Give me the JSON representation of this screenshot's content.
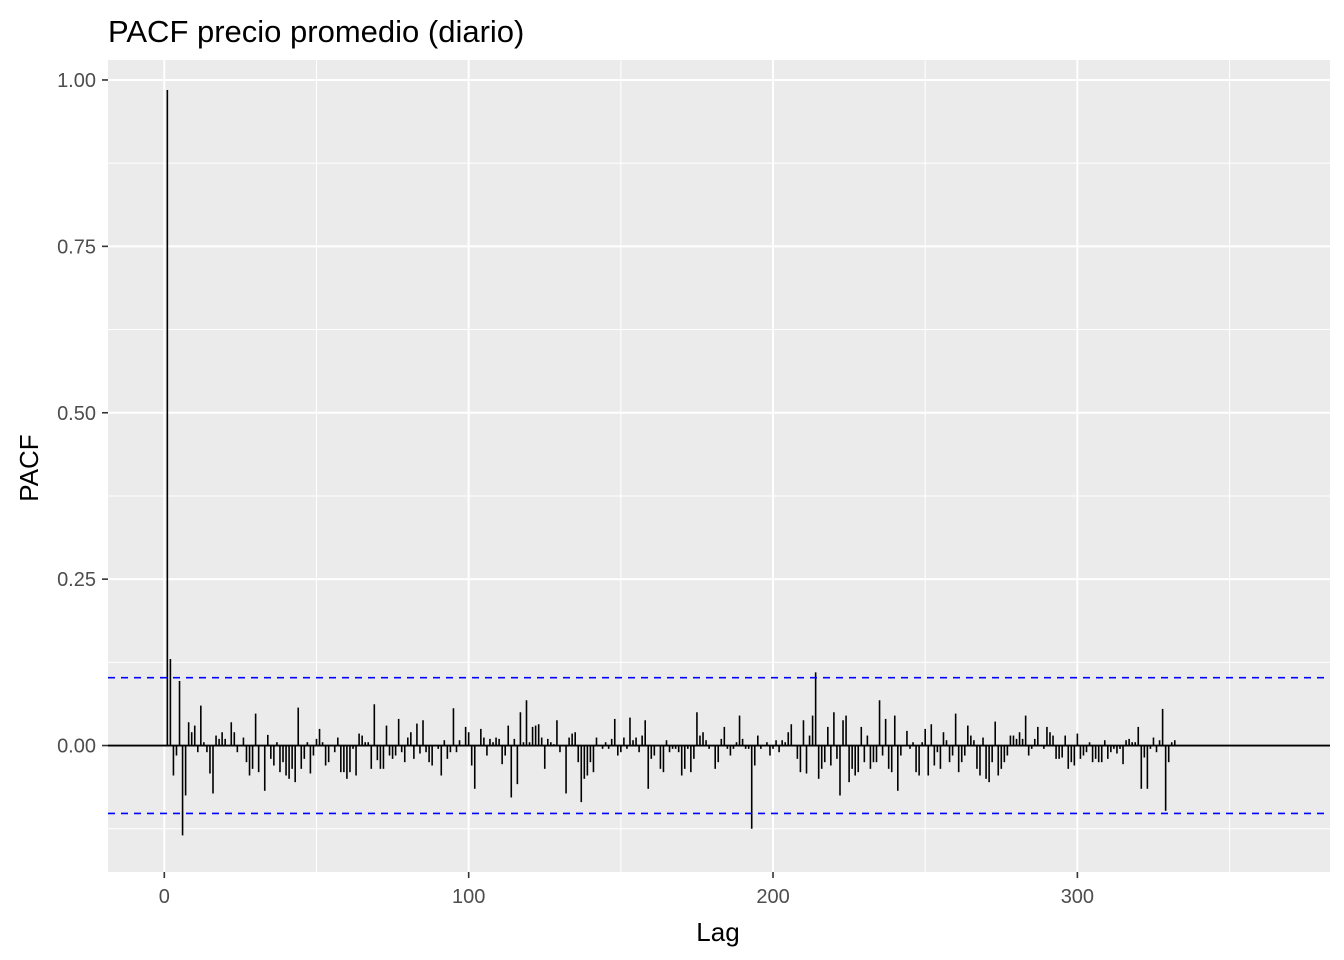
{
  "chart_data": {
    "type": "bar",
    "title": "PACF precio promedio (diario)",
    "xlabel": "Lag",
    "ylabel": "PACF",
    "xlim": [
      -18.5,
      383
    ],
    "ylim": [
      -0.19,
      1.03
    ],
    "x_ticks": [
      0,
      100,
      200,
      300
    ],
    "x_tick_labels": [
      "0",
      "100",
      "200",
      "300"
    ],
    "y_ticks": [
      0.0,
      0.25,
      0.5,
      0.75,
      1.0
    ],
    "y_tick_labels": [
      "0.00",
      "0.25",
      "0.50",
      "0.75",
      "1.00"
    ],
    "grid": true,
    "confidence_bound": 0.102,
    "zero_line": true,
    "colors": {
      "panel_background": "#ebebeb",
      "grid": "#ffffff",
      "bars": "#000000",
      "confidence_lines": "#0000ff",
      "zero_line": "#000000"
    },
    "lags_start": 1,
    "values": [
      0.985,
      0.13,
      -0.045,
      -0.015,
      0.097,
      -0.135,
      -0.075,
      0.035,
      0.02,
      0.03,
      -0.01,
      0.06,
      0.005,
      -0.01,
      -0.042,
      -0.072,
      0.015,
      0.01,
      0.02,
      0.01,
      0.0,
      0.035,
      0.02,
      -0.01,
      0.0,
      0.012,
      -0.025,
      -0.045,
      -0.035,
      0.048,
      -0.04,
      0.0,
      -0.068,
      0.016,
      -0.02,
      -0.03,
      0.005,
      -0.04,
      -0.025,
      -0.045,
      -0.05,
      -0.035,
      -0.055,
      0.057,
      -0.035,
      -0.02,
      0.005,
      -0.042,
      -0.015,
      0.01,
      0.025,
      0.005,
      -0.03,
      -0.025,
      0.0,
      -0.01,
      0.012,
      -0.04,
      -0.04,
      -0.05,
      -0.04,
      -0.005,
      -0.045,
      0.018,
      0.015,
      0.005,
      0.005,
      -0.035,
      0.062,
      -0.022,
      -0.035,
      -0.035,
      0.03,
      -0.015,
      -0.02,
      -0.015,
      0.04,
      -0.01,
      -0.025,
      0.012,
      0.02,
      -0.02,
      0.033,
      -0.012,
      0.038,
      -0.01,
      -0.025,
      -0.03,
      0.0,
      -0.005,
      -0.045,
      0.008,
      -0.02,
      -0.01,
      0.056,
      -0.01,
      0.008,
      0.0,
      0.028,
      0.02,
      -0.03,
      -0.065,
      0.0,
      0.025,
      0.012,
      -0.015,
      0.01,
      0.005,
      0.012,
      0.01,
      -0.028,
      -0.015,
      0.03,
      -0.078,
      0.01,
      -0.058,
      0.05,
      0.005,
      0.068,
      0.005,
      0.028,
      0.03,
      0.032,
      0.012,
      -0.035,
      0.01,
      0.005,
      0.002,
      0.038,
      -0.01,
      0.0,
      -0.072,
      0.012,
      0.018,
      0.02,
      -0.025,
      -0.085,
      -0.05,
      -0.045,
      -0.025,
      -0.04,
      0.012,
      0.0,
      -0.005,
      0.005,
      -0.005,
      0.01,
      0.04,
      -0.015,
      -0.01,
      0.012,
      -0.005,
      0.042,
      0.008,
      0.012,
      -0.01,
      0.015,
      0.038,
      -0.065,
      -0.02,
      -0.015,
      0.0,
      -0.035,
      -0.04,
      0.008,
      -0.01,
      -0.005,
      -0.005,
      -0.01,
      -0.045,
      -0.035,
      -0.005,
      -0.04,
      -0.02,
      0.05,
      0.015,
      0.02,
      0.008,
      -0.005,
      0.0,
      -0.035,
      -0.025,
      0.01,
      0.028,
      -0.005,
      -0.015,
      -0.005,
      0.005,
      0.045,
      0.01,
      -0.005,
      -0.005,
      -0.125,
      -0.03,
      0.015,
      -0.005,
      0.0,
      0.005,
      -0.015,
      -0.005,
      0.008,
      -0.01,
      0.008,
      0.005,
      0.02,
      0.032,
      0.0,
      -0.02,
      -0.04,
      0.038,
      -0.042,
      0.015,
      0.045,
      0.11,
      -0.05,
      -0.035,
      -0.025,
      0.028,
      -0.03,
      0.05,
      -0.02,
      -0.075,
      0.038,
      0.045,
      -0.055,
      -0.035,
      -0.045,
      -0.04,
      0.028,
      -0.025,
      0.015,
      -0.035,
      -0.025,
      -0.025,
      0.068,
      -0.015,
      0.04,
      -0.035,
      -0.04,
      0.045,
      -0.068,
      -0.015,
      0.0,
      0.022,
      -0.005,
      0.005,
      -0.04,
      -0.045,
      0.005,
      0.025,
      -0.045,
      0.032,
      -0.03,
      -0.01,
      -0.035,
      0.02,
      0.008,
      -0.025,
      -0.015,
      0.048,
      -0.04,
      -0.025,
      -0.015,
      0.03,
      0.015,
      0.008,
      -0.035,
      -0.045,
      0.012,
      -0.05,
      -0.055,
      -0.025,
      0.036,
      -0.045,
      -0.035,
      -0.025,
      -0.015,
      0.015,
      0.015,
      0.01,
      0.02,
      0.01,
      0.045,
      -0.015,
      -0.005,
      0.01,
      0.028,
      0.0,
      -0.005,
      0.028,
      0.02,
      0.015,
      -0.02,
      -0.02,
      -0.018,
      0.015,
      -0.035,
      -0.025,
      -0.03,
      0.018,
      -0.02,
      -0.015,
      -0.01,
      0.005,
      -0.025,
      -0.02,
      -0.025,
      -0.025,
      0.008,
      -0.02,
      -0.01,
      -0.005,
      -0.012,
      -0.005,
      -0.028,
      0.008,
      0.01,
      0.005,
      0.005,
      0.028,
      -0.065,
      -0.018,
      -0.065,
      -0.005,
      0.012,
      -0.01,
      0.008,
      0.055,
      -0.098,
      -0.025,
      0.005,
      0.008
    ]
  }
}
